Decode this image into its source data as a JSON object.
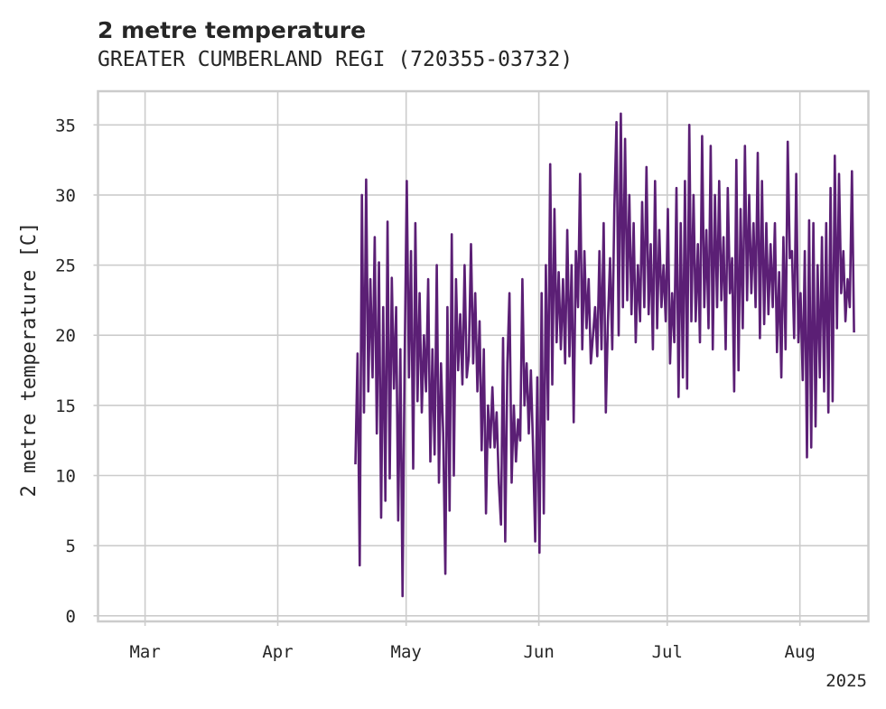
{
  "chart_data": {
    "type": "line",
    "title": "2 metre temperature",
    "subtitle": "GREATER CUMBERLAND REGI (720355-03732)",
    "ylabel": "2 metre temperature [C]",
    "xlabel": "",
    "x_ticks": [
      "Mar",
      "Apr",
      "May",
      "Jun",
      "Jul",
      "Aug"
    ],
    "x_tick_dates": [
      "2025-03-01",
      "2025-04-01",
      "2025-05-01",
      "2025-06-01",
      "2025-07-01",
      "2025-08-01"
    ],
    "x_offset_label": "2025",
    "xlim": [
      "2025-02-18",
      "2025-08-17"
    ],
    "y_ticks": [
      0,
      5,
      10,
      15,
      20,
      25,
      30,
      35
    ],
    "ylim": [
      -0.4,
      37.4
    ],
    "grid": true,
    "line_color": "#5b1f75",
    "series": [
      {
        "points": [
          [
            "2025-04-19",
            10.8
          ],
          [
            "2025-04-19",
            18.7
          ],
          [
            "2025-04-20",
            3.6
          ],
          [
            "2025-04-20",
            30.0
          ],
          [
            "2025-04-21",
            14.5
          ],
          [
            "2025-04-21",
            31.1
          ],
          [
            "2025-04-22",
            16.0
          ],
          [
            "2025-04-22",
            24.0
          ],
          [
            "2025-04-23",
            17.0
          ],
          [
            "2025-04-23",
            27.0
          ],
          [
            "2025-04-24",
            13.0
          ],
          [
            "2025-04-24",
            25.2
          ],
          [
            "2025-04-25",
            7.0
          ],
          [
            "2025-04-25",
            22.0
          ],
          [
            "2025-04-26",
            8.2
          ],
          [
            "2025-04-26",
            28.1
          ],
          [
            "2025-04-27",
            9.8
          ],
          [
            "2025-04-27",
            24.1
          ],
          [
            "2025-04-28",
            16.2
          ],
          [
            "2025-04-28",
            22.0
          ],
          [
            "2025-04-29",
            6.8
          ],
          [
            "2025-04-29",
            19.0
          ],
          [
            "2025-04-30",
            1.4
          ],
          [
            "2025-04-30",
            18.0
          ],
          [
            "2025-05-01",
            31.0
          ],
          [
            "2025-05-01",
            17.0
          ],
          [
            "2025-05-02",
            26.0
          ],
          [
            "2025-05-02",
            10.5
          ],
          [
            "2025-05-03",
            28.0
          ],
          [
            "2025-05-03",
            15.3
          ],
          [
            "2025-05-04",
            23.0
          ],
          [
            "2025-05-04",
            14.5
          ],
          [
            "2025-05-05",
            20.0
          ],
          [
            "2025-05-05",
            16.0
          ],
          [
            "2025-05-06",
            24.0
          ],
          [
            "2025-05-06",
            11.0
          ],
          [
            "2025-05-07",
            19.0
          ],
          [
            "2025-05-07",
            11.5
          ],
          [
            "2025-05-08",
            25.0
          ],
          [
            "2025-05-08",
            9.5
          ],
          [
            "2025-05-09",
            18.0
          ],
          [
            "2025-05-09",
            13.0
          ],
          [
            "2025-05-10",
            3.0
          ],
          [
            "2025-05-10",
            22.0
          ],
          [
            "2025-05-11",
            7.5
          ],
          [
            "2025-05-11",
            27.2
          ],
          [
            "2025-05-12",
            10.0
          ],
          [
            "2025-05-12",
            24.0
          ],
          [
            "2025-05-13",
            17.5
          ],
          [
            "2025-05-13",
            21.5
          ],
          [
            "2025-05-14",
            16.5
          ],
          [
            "2025-05-14",
            25.0
          ],
          [
            "2025-05-15",
            17.0
          ],
          [
            "2025-05-15",
            18.5
          ],
          [
            "2025-05-16",
            26.5
          ],
          [
            "2025-05-16",
            18.0
          ],
          [
            "2025-05-17",
            23.0
          ],
          [
            "2025-05-17",
            16.0
          ],
          [
            "2025-05-18",
            21.0
          ],
          [
            "2025-05-18",
            11.8
          ],
          [
            "2025-05-19",
            19.0
          ],
          [
            "2025-05-19",
            7.3
          ],
          [
            "2025-05-20",
            15.0
          ],
          [
            "2025-05-20",
            12.0
          ],
          [
            "2025-05-21",
            16.3
          ],
          [
            "2025-05-21",
            12.0
          ],
          [
            "2025-05-22",
            14.5
          ],
          [
            "2025-05-22",
            9.5
          ],
          [
            "2025-05-23",
            6.5
          ],
          [
            "2025-05-23",
            19.8
          ],
          [
            "2025-05-24",
            5.3
          ],
          [
            "2025-05-24",
            18.0
          ],
          [
            "2025-05-25",
            23.0
          ],
          [
            "2025-05-25",
            9.5
          ],
          [
            "2025-05-26",
            15.0
          ],
          [
            "2025-05-26",
            11.0
          ],
          [
            "2025-05-27",
            14.0
          ],
          [
            "2025-05-27",
            12.5
          ],
          [
            "2025-05-28",
            24.0
          ],
          [
            "2025-05-28",
            15.0
          ],
          [
            "2025-05-29",
            18.0
          ],
          [
            "2025-05-29",
            13.0
          ],
          [
            "2025-05-30",
            17.5
          ],
          [
            "2025-05-30",
            12.0
          ],
          [
            "2025-05-31",
            5.3
          ],
          [
            "2025-05-31",
            17.0
          ],
          [
            "2025-06-01",
            4.5
          ],
          [
            "2025-06-01",
            23.0
          ],
          [
            "2025-06-02",
            7.3
          ],
          [
            "2025-06-02",
            25.0
          ],
          [
            "2025-06-03",
            14.0
          ],
          [
            "2025-06-03",
            32.2
          ],
          [
            "2025-06-04",
            16.5
          ],
          [
            "2025-06-04",
            29.0
          ],
          [
            "2025-06-05",
            19.5
          ],
          [
            "2025-06-05",
            24.5
          ],
          [
            "2025-06-06",
            19.0
          ],
          [
            "2025-06-06",
            24.0
          ],
          [
            "2025-06-07",
            18.0
          ],
          [
            "2025-06-07",
            27.5
          ],
          [
            "2025-06-08",
            18.5
          ],
          [
            "2025-06-08",
            25.0
          ],
          [
            "2025-06-09",
            13.8
          ],
          [
            "2025-06-09",
            26.0
          ],
          [
            "2025-06-10",
            22.0
          ],
          [
            "2025-06-10",
            31.5
          ],
          [
            "2025-06-11",
            19.0
          ],
          [
            "2025-06-11",
            26.0
          ],
          [
            "2025-06-12",
            20.5
          ],
          [
            "2025-06-12",
            24.0
          ],
          [
            "2025-06-13",
            18.0
          ],
          [
            "2025-06-13",
            20.0
          ],
          [
            "2025-06-14",
            22.0
          ],
          [
            "2025-06-14",
            18.5
          ],
          [
            "2025-06-15",
            26.0
          ],
          [
            "2025-06-15",
            19.0
          ],
          [
            "2025-06-16",
            28.0
          ],
          [
            "2025-06-16",
            14.5
          ],
          [
            "2025-06-17",
            21.0
          ],
          [
            "2025-06-17",
            25.5
          ],
          [
            "2025-06-18",
            19.0
          ],
          [
            "2025-06-18",
            29.0
          ],
          [
            "2025-06-19",
            35.2
          ],
          [
            "2025-06-19",
            20.0
          ],
          [
            "2025-06-20",
            35.8
          ],
          [
            "2025-06-20",
            22.0
          ],
          [
            "2025-06-21",
            34.0
          ],
          [
            "2025-06-21",
            22.5
          ],
          [
            "2025-06-22",
            30.0
          ],
          [
            "2025-06-22",
            21.5
          ],
          [
            "2025-06-23",
            28.0
          ],
          [
            "2025-06-23",
            19.5
          ],
          [
            "2025-06-24",
            25.0
          ],
          [
            "2025-06-24",
            21.0
          ],
          [
            "2025-06-25",
            29.5
          ],
          [
            "2025-06-25",
            22.0
          ],
          [
            "2025-06-26",
            32.0
          ],
          [
            "2025-06-26",
            21.5
          ],
          [
            "2025-06-27",
            26.5
          ],
          [
            "2025-06-27",
            19.0
          ],
          [
            "2025-06-28",
            31.0
          ],
          [
            "2025-06-28",
            20.5
          ],
          [
            "2025-06-29",
            27.5
          ],
          [
            "2025-06-29",
            22.0
          ],
          [
            "2025-06-30",
            25.0
          ],
          [
            "2025-06-30",
            21.0
          ],
          [
            "2025-07-01",
            29.0
          ],
          [
            "2025-07-01",
            18.0
          ],
          [
            "2025-07-02",
            23.0
          ],
          [
            "2025-07-02",
            19.5
          ],
          [
            "2025-07-03",
            30.5
          ],
          [
            "2025-07-03",
            15.6
          ],
          [
            "2025-07-04",
            28.0
          ],
          [
            "2025-07-04",
            17.0
          ],
          [
            "2025-07-05",
            31.0
          ],
          [
            "2025-07-05",
            16.2
          ],
          [
            "2025-07-06",
            35.0
          ],
          [
            "2025-07-06",
            21.0
          ],
          [
            "2025-07-07",
            30.0
          ],
          [
            "2025-07-07",
            21.0
          ],
          [
            "2025-07-08",
            26.5
          ],
          [
            "2025-07-08",
            19.5
          ],
          [
            "2025-07-09",
            34.2
          ],
          [
            "2025-07-09",
            22.0
          ],
          [
            "2025-07-10",
            27.5
          ],
          [
            "2025-07-10",
            20.5
          ],
          [
            "2025-07-11",
            33.5
          ],
          [
            "2025-07-11",
            19.0
          ],
          [
            "2025-07-12",
            30.0
          ],
          [
            "2025-07-12",
            22.0
          ],
          [
            "2025-07-13",
            31.0
          ],
          [
            "2025-07-13",
            22.5
          ],
          [
            "2025-07-14",
            27.0
          ],
          [
            "2025-07-14",
            19.0
          ],
          [
            "2025-07-15",
            30.5
          ],
          [
            "2025-07-15",
            23.0
          ],
          [
            "2025-07-16",
            25.5
          ],
          [
            "2025-07-16",
            16.0
          ],
          [
            "2025-07-17",
            32.5
          ],
          [
            "2025-07-17",
            17.5
          ],
          [
            "2025-07-18",
            29.0
          ],
          [
            "2025-07-18",
            20.5
          ],
          [
            "2025-07-19",
            33.5
          ],
          [
            "2025-07-19",
            22.5
          ],
          [
            "2025-07-20",
            30.0
          ],
          [
            "2025-07-20",
            23.0
          ],
          [
            "2025-07-21",
            28.0
          ],
          [
            "2025-07-21",
            22.0
          ],
          [
            "2025-07-22",
            33.0
          ],
          [
            "2025-07-22",
            19.8
          ],
          [
            "2025-07-23",
            31.0
          ],
          [
            "2025-07-23",
            20.8
          ],
          [
            "2025-07-24",
            28.0
          ],
          [
            "2025-07-24",
            21.5
          ],
          [
            "2025-07-25",
            26.5
          ],
          [
            "2025-07-25",
            22.0
          ],
          [
            "2025-07-26",
            28.0
          ],
          [
            "2025-07-26",
            18.8
          ],
          [
            "2025-07-27",
            24.5
          ],
          [
            "2025-07-27",
            17.0
          ],
          [
            "2025-07-28",
            27.0
          ],
          [
            "2025-07-28",
            19.0
          ],
          [
            "2025-07-29",
            33.8
          ],
          [
            "2025-07-29",
            25.5
          ],
          [
            "2025-07-30",
            26.0
          ],
          [
            "2025-07-30",
            19.8
          ],
          [
            "2025-07-31",
            31.5
          ],
          [
            "2025-07-31",
            19.5
          ],
          [
            "2025-08-01",
            23.0
          ],
          [
            "2025-08-01",
            16.8
          ],
          [
            "2025-08-02",
            26.0
          ],
          [
            "2025-08-02",
            11.3
          ],
          [
            "2025-08-03",
            28.2
          ],
          [
            "2025-08-03",
            12.0
          ],
          [
            "2025-08-04",
            28.0
          ],
          [
            "2025-08-04",
            13.5
          ],
          [
            "2025-08-05",
            25.0
          ],
          [
            "2025-08-05",
            17.0
          ],
          [
            "2025-08-06",
            27.0
          ],
          [
            "2025-08-06",
            16.0
          ],
          [
            "2025-08-07",
            28.0
          ],
          [
            "2025-08-07",
            14.5
          ],
          [
            "2025-08-08",
            30.5
          ],
          [
            "2025-08-08",
            15.3
          ],
          [
            "2025-08-09",
            32.8
          ],
          [
            "2025-08-09",
            20.5
          ],
          [
            "2025-08-10",
            31.5
          ],
          [
            "2025-08-10",
            23.0
          ],
          [
            "2025-08-11",
            26.0
          ],
          [
            "2025-08-11",
            21.0
          ],
          [
            "2025-08-12",
            24.0
          ],
          [
            "2025-08-12",
            22.0
          ],
          [
            "2025-08-13",
            31.7
          ],
          [
            "2025-08-13",
            20.2
          ]
        ]
      }
    ]
  }
}
